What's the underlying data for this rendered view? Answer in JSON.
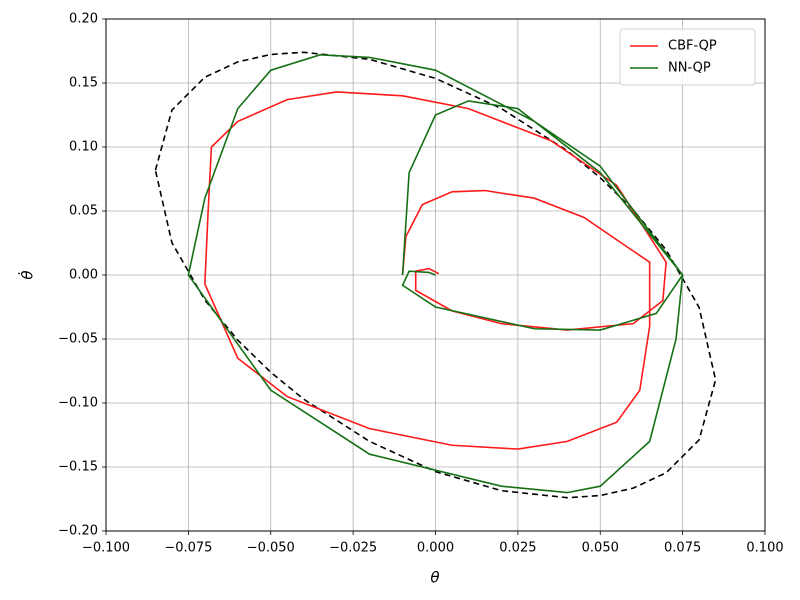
{
  "chart_data": {
    "type": "line",
    "xlabel": "θ",
    "ylabel": "θ̇",
    "xlim": [
      -0.1,
      0.1
    ],
    "ylim": [
      -0.2,
      0.2
    ],
    "xticks": [
      {
        "value": -0.1,
        "label": "−0.100"
      },
      {
        "value": -0.075,
        "label": "−0.075"
      },
      {
        "value": -0.05,
        "label": "−0.050"
      },
      {
        "value": -0.025,
        "label": "−0.025"
      },
      {
        "value": 0,
        "label": "0.000"
      },
      {
        "value": 0.025,
        "label": "0.025"
      },
      {
        "value": 0.05,
        "label": "0.050"
      },
      {
        "value": 0.075,
        "label": "0.075"
      },
      {
        "value": 0.1,
        "label": "0.100"
      }
    ],
    "yticks": [
      {
        "value": -0.2,
        "label": "−0.20"
      },
      {
        "value": -0.15,
        "label": "−0.15"
      },
      {
        "value": -0.1,
        "label": "−0.10"
      },
      {
        "value": -0.05,
        "label": "−0.05"
      },
      {
        "value": 0,
        "label": "0.00"
      },
      {
        "value": 0.05,
        "label": "0.05"
      },
      {
        "value": 0.1,
        "label": "0.10"
      },
      {
        "value": 0.15,
        "label": "0.15"
      },
      {
        "value": 0.2,
        "label": "0.20"
      }
    ],
    "grid": true,
    "legend": "upper right",
    "boundary": {
      "color": "#000000",
      "dashed": true,
      "x": [
        -0.085,
        -0.08,
        -0.07,
        -0.06,
        -0.05,
        -0.04,
        -0.02,
        0,
        0.02,
        0.04,
        0.05,
        0.06,
        0.07,
        0.08,
        0.085,
        0.08,
        0.07,
        0.06,
        0.05,
        0.04,
        0.02,
        0,
        -0.02,
        -0.04,
        -0.05,
        -0.06,
        -0.07,
        -0.08,
        -0.085
      ],
      "values": [
        0.0819,
        0.1288,
        0.1545,
        0.1665,
        0.1723,
        0.174,
        0.1685,
        0.1536,
        0.13,
        0.097,
        0.076,
        0.0509,
        0.0196,
        -0.0253,
        -0.0819,
        -0.1288,
        -0.1545,
        -0.1665,
        -0.1723,
        -0.174,
        -0.1685,
        -0.1536,
        -0.13,
        -0.097,
        -0.076,
        -0.0509,
        -0.0196,
        0.0253,
        0.0819
      ]
    },
    "series": [
      {
        "name": "CBF-QP",
        "color": "#ff1a1a",
        "x": [
          -0.01,
          -0.009,
          -0.004,
          0.005,
          0.015,
          0.03,
          0.045,
          0.065,
          0.065,
          0.062,
          0.055,
          0.04,
          0.025,
          0.005,
          -0.02,
          -0.045,
          -0.06,
          -0.07,
          -0.069,
          -0.068,
          -0.06,
          -0.045,
          -0.03,
          -0.01,
          0.01,
          0.035,
          0.055,
          0.07,
          0.069,
          0.06,
          0.04,
          0.02,
          0.005,
          -0.006,
          -0.006,
          -0.002,
          0.001
        ],
        "values": [
          0,
          0.03,
          0.055,
          0.065,
          0.066,
          0.06,
          0.045,
          0.01,
          -0.04,
          -0.09,
          -0.115,
          -0.13,
          -0.136,
          -0.133,
          -0.12,
          -0.095,
          -0.065,
          -0.007,
          0.05,
          0.1,
          0.12,
          0.137,
          0.143,
          0.14,
          0.13,
          0.105,
          0.07,
          0.01,
          -0.02,
          -0.038,
          -0.043,
          -0.038,
          -0.028,
          -0.012,
          0.003,
          0.005,
          0.001
        ]
      },
      {
        "name": "NN-QP",
        "color": "#157015",
        "x": [
          -0.01,
          -0.008,
          0,
          0.01,
          0.025,
          0.05,
          0.075,
          0.073,
          0.065,
          0.05,
          0.04,
          0.02,
          -0.02,
          -0.05,
          -0.075,
          -0.07,
          -0.06,
          -0.05,
          -0.035,
          -0.02,
          0,
          0.03,
          0.05,
          0.075,
          0.067,
          0.05,
          0.03,
          0,
          -0.01,
          -0.008,
          -0.002,
          0
        ],
        "values": [
          0,
          0.08,
          0.125,
          0.136,
          0.13,
          0.08,
          0,
          -0.05,
          -0.13,
          -0.165,
          -0.17,
          -0.165,
          -0.14,
          -0.09,
          0,
          0.06,
          0.13,
          0.16,
          0.172,
          0.17,
          0.16,
          0.12,
          0.085,
          0,
          -0.03,
          -0.043,
          -0.042,
          -0.025,
          -0.008,
          0.003,
          0.002,
          0
        ]
      }
    ]
  }
}
